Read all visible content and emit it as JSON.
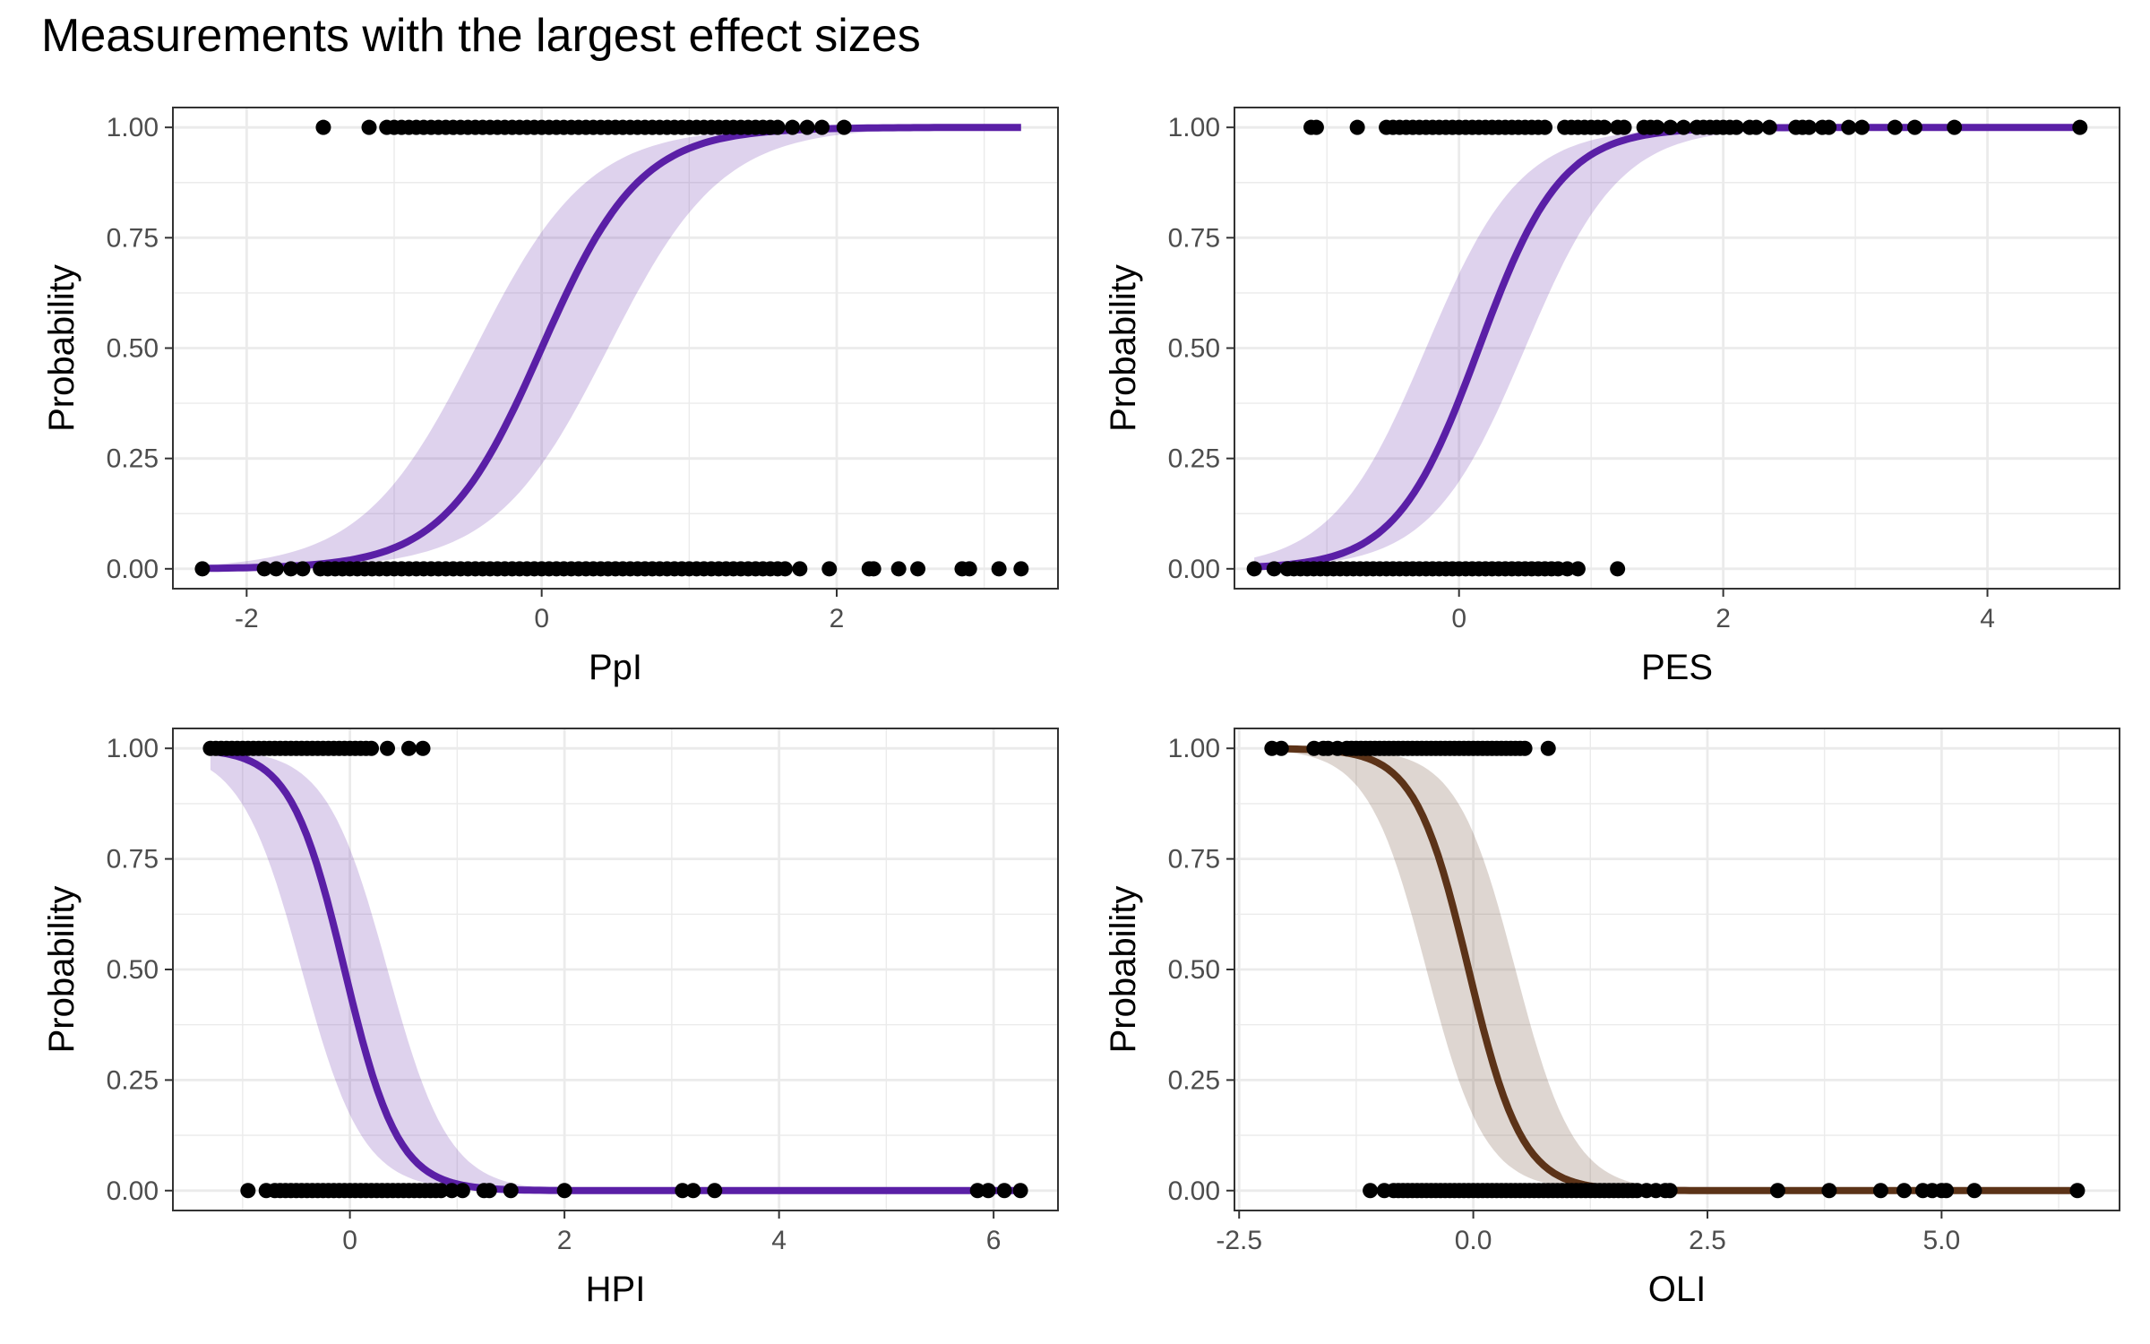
{
  "title": "Measurements with the largest effect sizes",
  "colors": {
    "purple": "#5a1fa6",
    "brown": "#5c3318",
    "grid": "#ebebeb",
    "points": "#000000"
  },
  "chart_data": [
    {
      "type": "scatter",
      "xlabel": "PpI",
      "ylabel": "Probability",
      "xlim": [
        -2.5,
        3.5
      ],
      "ylim": [
        -0.045,
        1.045
      ],
      "xticks": [
        -2,
        0,
        2
      ],
      "xtick_labels": [
        "-2",
        "0",
        "2"
      ],
      "yticks": [
        0,
        0.25,
        0.5,
        0.75,
        1
      ],
      "ytick_labels": [
        "0.00",
        "0.25",
        "0.50",
        "0.75",
        "1.00"
      ],
      "curve": {
        "color": "#5a1fa6",
        "x_range": [
          -2.3,
          3.25
        ],
        "midpoint": 0.0,
        "slope": 3.0,
        "ribbon_lo": {
          "midpoint": 0.45,
          "slope": 2.6
        },
        "ribbon_hi": {
          "midpoint": -0.45,
          "slope": 2.6
        }
      },
      "points_y1": [
        -1.48,
        -1.17,
        -1.05,
        -1.0,
        -0.95,
        -0.9,
        -0.85,
        -0.8,
        -0.75,
        -0.7,
        -0.65,
        -0.6,
        -0.55,
        -0.5,
        -0.45,
        -0.4,
        -0.35,
        -0.3,
        -0.25,
        -0.2,
        -0.15,
        -0.1,
        -0.05,
        0.0,
        0.05,
        0.1,
        0.15,
        0.2,
        0.25,
        0.3,
        0.35,
        0.4,
        0.45,
        0.5,
        0.55,
        0.6,
        0.65,
        0.7,
        0.75,
        0.8,
        0.85,
        0.9,
        0.95,
        1.0,
        1.05,
        1.1,
        1.15,
        1.2,
        1.25,
        1.3,
        1.35,
        1.4,
        1.45,
        1.5,
        1.55,
        1.6,
        1.7,
        1.8,
        1.9,
        2.05
      ],
      "points_y0": [
        -2.3,
        -1.88,
        -1.8,
        -1.7,
        -1.62,
        -1.5,
        -1.45,
        -1.4,
        -1.35,
        -1.3,
        -1.25,
        -1.2,
        -1.15,
        -1.1,
        -1.05,
        -1.0,
        -0.95,
        -0.9,
        -0.85,
        -0.8,
        -0.75,
        -0.7,
        -0.65,
        -0.6,
        -0.55,
        -0.5,
        -0.45,
        -0.4,
        -0.35,
        -0.3,
        -0.25,
        -0.2,
        -0.15,
        -0.1,
        -0.05,
        0.0,
        0.05,
        0.1,
        0.15,
        0.2,
        0.25,
        0.3,
        0.35,
        0.4,
        0.45,
        0.5,
        0.55,
        0.6,
        0.65,
        0.7,
        0.75,
        0.8,
        0.85,
        0.9,
        0.95,
        1.0,
        1.05,
        1.1,
        1.15,
        1.2,
        1.25,
        1.3,
        1.35,
        1.4,
        1.45,
        1.5,
        1.55,
        1.6,
        1.65,
        1.75,
        1.95,
        2.22,
        2.25,
        2.42,
        2.55,
        2.85,
        2.9,
        3.1,
        3.25
      ]
    },
    {
      "type": "scatter",
      "xlabel": "PES",
      "ylabel": "Probability",
      "xlim": [
        -1.7,
        5.0
      ],
      "ylim": [
        -0.045,
        1.045
      ],
      "xticks": [
        0,
        2,
        4
      ],
      "xtick_labels": [
        "0",
        "2",
        "4"
      ],
      "yticks": [
        0,
        0.25,
        0.5,
        0.75,
        1
      ],
      "ytick_labels": [
        "0.00",
        "0.25",
        "0.50",
        "0.75",
        "1.00"
      ],
      "curve": {
        "color": "#5a1fa6",
        "x_range": [
          -1.55,
          4.7
        ],
        "midpoint": 0.15,
        "slope": 3.2,
        "ribbon_lo": {
          "midpoint": 0.5,
          "slope": 2.8
        },
        "ribbon_hi": {
          "midpoint": -0.25,
          "slope": 2.8
        }
      },
      "points_y1": [
        -1.12,
        -1.08,
        -0.77,
        -0.55,
        -0.5,
        -0.45,
        -0.4,
        -0.35,
        -0.3,
        -0.25,
        -0.2,
        -0.15,
        -0.1,
        -0.05,
        0.0,
        0.05,
        0.1,
        0.15,
        0.2,
        0.25,
        0.3,
        0.35,
        0.4,
        0.45,
        0.5,
        0.55,
        0.6,
        0.65,
        0.8,
        0.85,
        0.9,
        0.95,
        1.0,
        1.05,
        1.1,
        1.2,
        1.25,
        1.4,
        1.45,
        1.5,
        1.6,
        1.7,
        1.8,
        1.85,
        1.9,
        1.95,
        2.0,
        2.05,
        2.1,
        2.2,
        2.25,
        2.35,
        2.55,
        2.6,
        2.65,
        2.75,
        2.8,
        2.95,
        3.05,
        3.3,
        3.45,
        3.75,
        4.7
      ],
      "points_y0": [
        -1.55,
        -1.4,
        -1.3,
        -1.25,
        -1.2,
        -1.15,
        -1.1,
        -1.05,
        -1.0,
        -0.95,
        -0.9,
        -0.85,
        -0.8,
        -0.75,
        -0.7,
        -0.65,
        -0.6,
        -0.55,
        -0.5,
        -0.45,
        -0.4,
        -0.35,
        -0.3,
        -0.25,
        -0.2,
        -0.15,
        -0.1,
        -0.05,
        0.0,
        0.05,
        0.1,
        0.15,
        0.2,
        0.25,
        0.3,
        0.35,
        0.4,
        0.45,
        0.5,
        0.55,
        0.6,
        0.65,
        0.7,
        0.75,
        0.82,
        0.9,
        1.2
      ]
    },
    {
      "type": "scatter",
      "xlabel": "HPI",
      "ylabel": "Probability",
      "xlim": [
        -1.65,
        6.6
      ],
      "ylim": [
        -0.045,
        1.045
      ],
      "xticks": [
        0,
        2,
        4,
        6
      ],
      "xtick_labels": [
        "0",
        "2",
        "4",
        "6"
      ],
      "yticks": [
        0,
        0.25,
        0.5,
        0.75,
        1
      ],
      "ytick_labels": [
        "0.00",
        "0.25",
        "0.50",
        "0.75",
        "1.00"
      ],
      "curve": {
        "color": "#5a1fa6",
        "x_range": [
          -1.3,
          6.25
        ],
        "midpoint": -0.05,
        "slope": -4.0,
        "ribbon_lo": {
          "midpoint": -0.45,
          "slope": -3.5
        },
        "ribbon_hi": {
          "midpoint": 0.35,
          "slope": -3.5
        }
      },
      "points_y1": [
        -1.3,
        -1.25,
        -1.2,
        -1.15,
        -1.1,
        -1.05,
        -1.0,
        -0.95,
        -0.9,
        -0.85,
        -0.8,
        -0.75,
        -0.7,
        -0.65,
        -0.6,
        -0.55,
        -0.5,
        -0.45,
        -0.4,
        -0.35,
        -0.3,
        -0.25,
        -0.2,
        -0.15,
        -0.1,
        -0.05,
        0.0,
        0.05,
        0.1,
        0.15,
        0.2,
        0.35,
        0.55,
        0.68
      ],
      "points_y0": [
        -0.95,
        -0.78,
        -0.7,
        -0.65,
        -0.6,
        -0.55,
        -0.5,
        -0.45,
        -0.4,
        -0.35,
        -0.3,
        -0.25,
        -0.2,
        -0.15,
        -0.1,
        -0.05,
        0.0,
        0.05,
        0.1,
        0.15,
        0.2,
        0.25,
        0.3,
        0.35,
        0.4,
        0.45,
        0.5,
        0.55,
        0.6,
        0.65,
        0.7,
        0.75,
        0.8,
        0.85,
        0.95,
        1.05,
        1.25,
        1.3,
        1.5,
        2.0,
        3.1,
        3.2,
        3.4,
        5.85,
        5.95,
        6.1,
        6.25
      ]
    },
    {
      "type": "scatter",
      "xlabel": "OLI",
      "ylabel": "Probability",
      "xlim": [
        -2.55,
        6.9
      ],
      "ylim": [
        -0.045,
        1.045
      ],
      "xticks": [
        -2.5,
        0,
        2.5,
        5
      ],
      "xtick_labels": [
        "-2.5",
        "0.0",
        "2.5",
        "5.0"
      ],
      "yticks": [
        0,
        0.25,
        0.5,
        0.75,
        1
      ],
      "ytick_labels": [
        "0.00",
        "0.25",
        "0.50",
        "0.75",
        "1.00"
      ],
      "curve": {
        "color": "#5c3318",
        "x_range": [
          -2.15,
          6.45
        ],
        "midpoint": -0.05,
        "slope": -3.5,
        "ribbon_lo": {
          "midpoint": -0.5,
          "slope": -3.2
        },
        "ribbon_hi": {
          "midpoint": 0.45,
          "slope": -3.2
        }
      },
      "points_y1": [
        -2.15,
        -2.05,
        -1.7,
        -1.6,
        -1.55,
        -1.45,
        -1.35,
        -1.3,
        -1.25,
        -1.2,
        -1.15,
        -1.1,
        -1.05,
        -1.0,
        -0.95,
        -0.9,
        -0.85,
        -0.8,
        -0.75,
        -0.7,
        -0.65,
        -0.6,
        -0.55,
        -0.5,
        -0.45,
        -0.4,
        -0.35,
        -0.3,
        -0.25,
        -0.2,
        -0.15,
        -0.1,
        -0.05,
        0.0,
        0.05,
        0.1,
        0.15,
        0.2,
        0.25,
        0.3,
        0.35,
        0.4,
        0.45,
        0.5,
        0.55,
        0.8
      ],
      "points_y0": [
        -1.1,
        -0.95,
        -0.85,
        -0.8,
        -0.75,
        -0.7,
        -0.65,
        -0.6,
        -0.55,
        -0.5,
        -0.45,
        -0.4,
        -0.35,
        -0.3,
        -0.25,
        -0.2,
        -0.15,
        -0.1,
        -0.05,
        0.0,
        0.05,
        0.1,
        0.15,
        0.2,
        0.25,
        0.3,
        0.35,
        0.4,
        0.45,
        0.5,
        0.55,
        0.6,
        0.65,
        0.7,
        0.75,
        0.8,
        0.85,
        0.9,
        0.95,
        1.0,
        1.05,
        1.1,
        1.15,
        1.2,
        1.25,
        1.3,
        1.35,
        1.4,
        1.45,
        1.5,
        1.55,
        1.6,
        1.65,
        1.7,
        1.75,
        1.85,
        1.95,
        2.05,
        2.1,
        3.25,
        3.8,
        4.35,
        4.6,
        4.8,
        4.9,
        5.0,
        5.05,
        5.35,
        6.45
      ]
    }
  ]
}
